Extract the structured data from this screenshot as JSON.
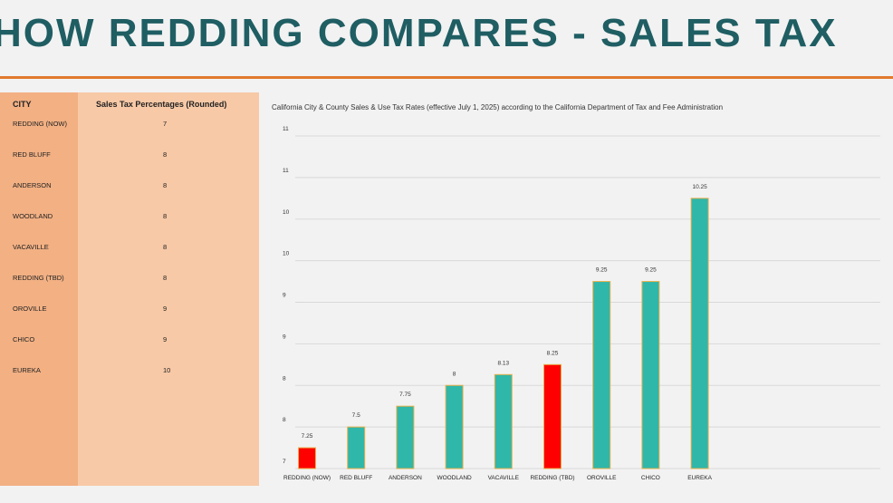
{
  "page": {
    "title": "HOW REDDING COMPARES - SALES TAX"
  },
  "table": {
    "headers": {
      "city": "CITY",
      "value": "Sales Tax Percentages (Rounded)"
    },
    "rows": [
      {
        "city": "REDDING (NOW)",
        "value": "7"
      },
      {
        "city": "RED BLUFF",
        "value": "8"
      },
      {
        "city": "ANDERSON",
        "value": "8"
      },
      {
        "city": "WOODLAND",
        "value": "8"
      },
      {
        "city": "VACAVILLE",
        "value": "8"
      },
      {
        "city": "REDDING (TBD)",
        "value": "8"
      },
      {
        "city": "OROVILLE",
        "value": "9"
      },
      {
        "city": "CHICO",
        "value": "9"
      },
      {
        "city": "EUREKA",
        "value": "10"
      }
    ]
  },
  "colors": {
    "bar": "#2fb7aa",
    "highlight": "#ff0000",
    "bar_border": "#e8b04a",
    "grid": "#d9d9d9"
  },
  "chart_data": {
    "type": "bar",
    "title": "California City & County Sales & Use Tax Rates (effective July 1, 2025) according to the California Department of Tax and Fee Administration",
    "categories": [
      "REDDING (NOW)",
      "RED BLUFF",
      "ANDERSON",
      "WOODLAND",
      "VACAVILLE",
      "REDDING (TBD)",
      "OROVILLE",
      "CHICO",
      "EUREKA"
    ],
    "values": [
      7.25,
      7.5,
      7.75,
      8,
      8.13,
      8.25,
      9.25,
      9.25,
      10.25
    ],
    "data_labels": [
      "7.25",
      "7.5",
      "7.75",
      "8",
      "8.13",
      "8.25",
      "9.25",
      "9.25",
      "10.25"
    ],
    "highlighted": [
      "REDDING (NOW)",
      "REDDING (TBD)"
    ],
    "ylim": [
      7,
      11
    ],
    "yticks": [
      7,
      7.5,
      8,
      8.5,
      9,
      9.5,
      10,
      10.5,
      11
    ],
    "ytick_labels": [
      "7",
      "8",
      "8",
      "9",
      "9",
      "10",
      "10",
      "11",
      "11"
    ],
    "grid": true,
    "legend": "none"
  }
}
